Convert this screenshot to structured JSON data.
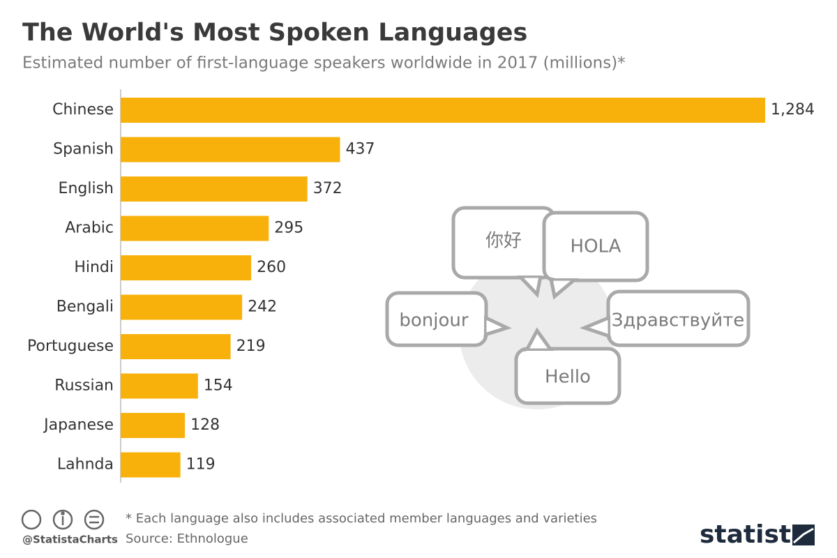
{
  "chart_data": {
    "type": "bar",
    "orientation": "horizontal",
    "title": "The World's Most Spoken Languages",
    "subtitle": "Estimated number of first-language speakers worldwide in 2017 (millions)*",
    "categories": [
      "Chinese",
      "Spanish",
      "English",
      "Arabic",
      "Hindi",
      "Bengali",
      "Portuguese",
      "Russian",
      "Japanese",
      "Lahnda"
    ],
    "values": [
      1284,
      437,
      372,
      295,
      260,
      242,
      219,
      154,
      128,
      119
    ],
    "value_labels": [
      "1,284",
      "437",
      "372",
      "295",
      "260",
      "242",
      "219",
      "154",
      "128",
      "119"
    ],
    "color": "#f8b10b",
    "xlim": [
      0,
      1284
    ],
    "annotations": [
      "你好",
      "HOLA",
      "bonjour",
      "Здравствуйте",
      "Hello"
    ],
    "note": "* Each language also includes associated member languages and varieties",
    "source": "Source: Ethnologue",
    "credit": "@StatistaCharts",
    "brand": "statista"
  }
}
